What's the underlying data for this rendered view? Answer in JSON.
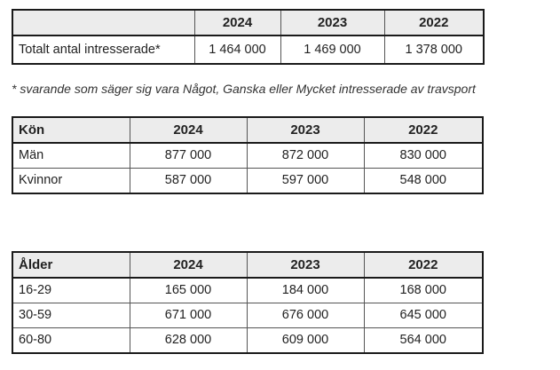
{
  "total_table": {
    "years": [
      "2024",
      "2023",
      "2022"
    ],
    "row": {
      "label": "Totalt antal intresserade*",
      "values": [
        "1 464 000",
        "1 469 000",
        "1 378 000"
      ]
    }
  },
  "footnote": "* svarande som säger sig vara Något, Ganska eller Mycket intresserade av travsport",
  "gender_table": {
    "header": "Kön",
    "years": [
      "2024",
      "2023",
      "2022"
    ],
    "rows": [
      {
        "label": "Män",
        "values": [
          "877 000",
          "872 000",
          "830 000"
        ]
      },
      {
        "label": "Kvinnor",
        "values": [
          "587 000",
          "597 000",
          "548 000"
        ]
      }
    ]
  },
  "age_table": {
    "header": "Ålder",
    "years": [
      "2024",
      "2023",
      "2022"
    ],
    "rows": [
      {
        "label": "16-29",
        "values": [
          "165 000",
          "184 000",
          "168 000"
        ]
      },
      {
        "label": "30-59",
        "values": [
          "671 000",
          "676 000",
          "645 000"
        ]
      },
      {
        "label": "60-80",
        "values": [
          "628 000",
          "609 000",
          "564 000"
        ]
      }
    ]
  }
}
